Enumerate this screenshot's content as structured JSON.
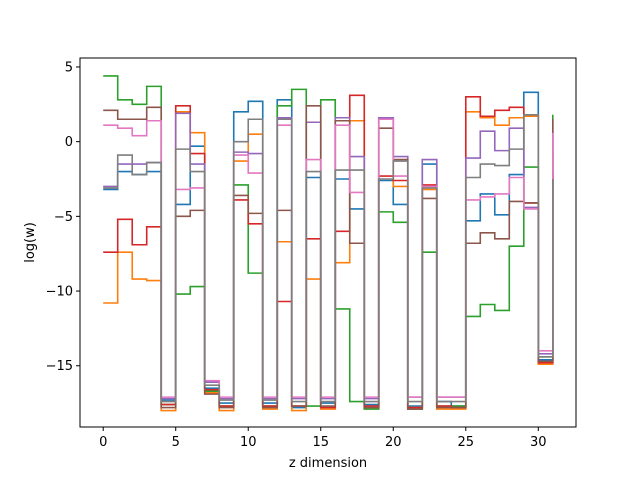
{
  "chart_data": {
    "type": "line",
    "drawstyle": "steps-post",
    "xlabel": "z dimension",
    "ylabel": "log(w)",
    "xlim": [
      -1.6,
      32.6
    ],
    "ylim": [
      -19.1,
      5.6
    ],
    "xticks": [
      0,
      5,
      10,
      15,
      20,
      25,
      30
    ],
    "yticks": [
      5,
      0,
      -5,
      -10,
      -15
    ],
    "grid": false,
    "legend": "none",
    "x": [
      0,
      1,
      2,
      3,
      4,
      5,
      6,
      7,
      8,
      9,
      10,
      11,
      12,
      13,
      14,
      15,
      16,
      17,
      18,
      19,
      20,
      21,
      22,
      23,
      24,
      25,
      26,
      27,
      28,
      29,
      30,
      31
    ],
    "series": [
      {
        "color": "#1f77b4",
        "values": [
          -3.2,
          -2.0,
          -2.2,
          -2.0,
          -17.3,
          -4.2,
          -0.3,
          -16.5,
          -17.5,
          2.0,
          2.7,
          -17.5,
          2.8,
          -17.8,
          -2.4,
          -17.5,
          -2.5,
          -4.5,
          -17.6,
          -2.6,
          -4.2,
          -17.7,
          -1.5,
          -17.4,
          -17.7,
          -5.3,
          -3.5,
          -4.9,
          -2.2,
          3.3,
          -14.6,
          -2.0
        ]
      },
      {
        "color": "#ff7f0e",
        "values": [
          -10.8,
          -7.4,
          -9.2,
          -9.3,
          -18.0,
          2.0,
          0.6,
          -16.8,
          -18.0,
          -1.3,
          0.5,
          -17.9,
          -6.7,
          -18.0,
          -9.2,
          -17.9,
          -8.1,
          1.4,
          -17.8,
          1.6,
          -3.0,
          -17.8,
          -3.2,
          -17.9,
          -17.9,
          2.0,
          1.6,
          1.1,
          1.6,
          1.7,
          -14.9,
          -2.4
        ]
      },
      {
        "color": "#2ca02c",
        "values": [
          4.4,
          2.8,
          2.5,
          3.7,
          -17.6,
          -10.2,
          -9.7,
          -16.7,
          -17.7,
          -2.9,
          -8.8,
          -17.7,
          2.4,
          3.5,
          -17.7,
          2.8,
          -11.2,
          -17.4,
          -17.9,
          -4.7,
          -5.4,
          -17.9,
          -7.4,
          -17.7,
          -17.7,
          -11.7,
          -10.9,
          -11.3,
          -7.0,
          -1.7,
          -14.4,
          1.8
        ]
      },
      {
        "color": "#d62728",
        "values": [
          -7.4,
          -5.2,
          -6.9,
          -5.7,
          -17.6,
          2.4,
          -0.8,
          -16.6,
          -17.7,
          -3.9,
          -5.5,
          -17.7,
          -10.7,
          -17.7,
          -6.5,
          -17.8,
          -6.0,
          3.1,
          -17.7,
          -2.3,
          -2.6,
          -17.8,
          -2.9,
          -17.7,
          -17.8,
          3.0,
          1.7,
          2.1,
          2.3,
          -4.1,
          -14.8,
          -0.6
        ]
      },
      {
        "color": "#9467bd",
        "values": [
          -3.0,
          -1.5,
          -1.5,
          -1.4,
          -17.2,
          1.9,
          -1.5,
          -16.1,
          -17.2,
          -0.7,
          -0.8,
          -17.2,
          1.6,
          -17.2,
          1.3,
          -17.2,
          1.6,
          -1.0,
          -17.2,
          1.6,
          -1.0,
          -17.1,
          -1.2,
          -17.1,
          -17.1,
          -1.1,
          0.7,
          -0.6,
          0.9,
          -4.4,
          -14.2,
          0.7
        ]
      },
      {
        "color": "#8c564b",
        "values": [
          2.1,
          1.5,
          1.5,
          2.3,
          -17.8,
          -5.0,
          -4.6,
          -16.9,
          -17.8,
          -3.6,
          -4.8,
          -17.8,
          -4.6,
          -17.7,
          2.4,
          -17.7,
          1.4,
          -6.8,
          -17.8,
          0.9,
          -1.2,
          -17.9,
          -3.8,
          -17.8,
          -17.8,
          -6.8,
          -6.1,
          -6.5,
          -4.0,
          -4.1,
          -14.7,
          1.5
        ]
      },
      {
        "color": "#e377c2",
        "values": [
          1.1,
          0.9,
          0.4,
          1.4,
          -17.1,
          -3.2,
          -3.1,
          -16.0,
          -17.1,
          -0.9,
          -2.1,
          -17.1,
          1.1,
          -17.1,
          -1.2,
          -17.1,
          1.1,
          -3.4,
          -17.1,
          1.5,
          -2.3,
          -17.1,
          -3.0,
          -17.1,
          -17.1,
          -3.9,
          -3.7,
          -3.5,
          -2.4,
          -4.5,
          -14.0,
          0.6
        ]
      },
      {
        "color": "#7f7f7f",
        "values": [
          -3.1,
          -0.9,
          -2.2,
          -1.4,
          -17.4,
          -0.5,
          -2.0,
          -16.3,
          -17.3,
          0.0,
          1.5,
          -17.3,
          1.5,
          -17.4,
          -2.0,
          -17.4,
          -1.9,
          -1.9,
          -17.4,
          -2.5,
          -1.3,
          -17.4,
          -3.1,
          -17.4,
          -17.4,
          -2.4,
          -1.5,
          -1.6,
          -0.5,
          1.8,
          -14.4,
          -2.5
        ]
      }
    ]
  }
}
